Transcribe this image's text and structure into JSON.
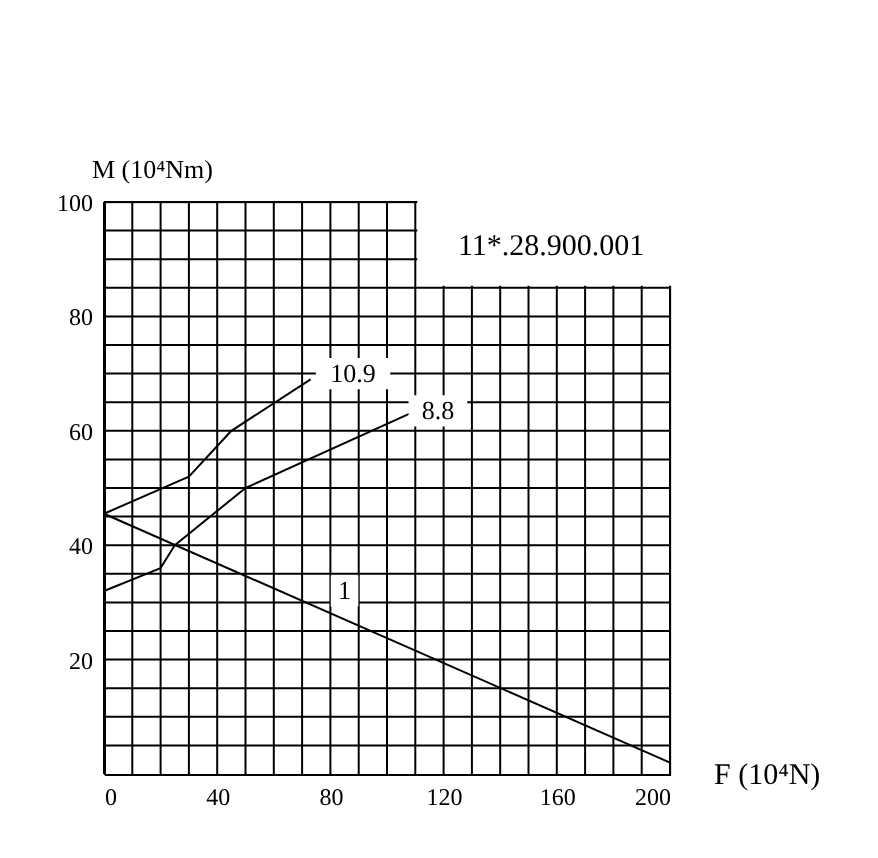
{
  "chart_data": {
    "type": "line",
    "xlabel": "F (10⁴N)",
    "ylabel": "M (10⁴Nm)",
    "xlim": [
      0,
      200
    ],
    "ylim": [
      0,
      100
    ],
    "xticks": [
      0,
      {
        "value": 10,
        "label": null
      },
      {
        "value": 20,
        "label": null
      },
      {
        "value": 30,
        "label": null
      },
      40,
      {
        "value": 50,
        "label": null
      },
      {
        "value": 60,
        "label": null
      },
      {
        "value": 70,
        "label": null
      },
      80,
      {
        "value": 90,
        "label": null
      },
      {
        "value": 100,
        "label": null
      },
      {
        "value": 110,
        "label": null
      },
      120,
      {
        "value": 130,
        "label": null
      },
      {
        "value": 140,
        "label": null
      },
      {
        "value": 150,
        "label": null
      },
      160,
      {
        "value": 170,
        "label": null
      },
      {
        "value": 180,
        "label": null
      },
      {
        "value": 190,
        "label": null
      },
      200
    ],
    "yticks": [
      {
        "value": 5,
        "label": null
      },
      {
        "value": 10,
        "label": null
      },
      {
        "value": 15,
        "label": null
      },
      20,
      {
        "value": 25,
        "label": null
      },
      {
        "value": 30,
        "label": null
      },
      {
        "value": 35,
        "label": null
      },
      40,
      {
        "value": 45,
        "label": null
      },
      {
        "value": 50,
        "label": null
      },
      {
        "value": 55,
        "label": null
      },
      60,
      {
        "value": 65,
        "label": null
      },
      {
        "value": 70,
        "label": null
      },
      {
        "value": 75,
        "label": null
      },
      80,
      {
        "value": 85,
        "label": null
      },
      {
        "value": 90,
        "label": null
      },
      {
        "value": 95,
        "label": null
      },
      100
    ],
    "grid": true,
    "marker": "none",
    "line_style": "solid",
    "series": [
      {
        "color": "#000000",
        "x": [
          0,
          30,
          45,
          73
        ],
        "values": [
          45.5,
          52,
          60,
          69
        ]
      },
      {
        "color": "#000000",
        "x": [
          0,
          20,
          25,
          50,
          108
        ],
        "values": [
          32,
          36,
          40,
          50,
          63
        ]
      },
      {
        "color": "#000000",
        "x": [
          0,
          200
        ],
        "values": [
          45.5,
          2
        ]
      }
    ],
    "annotations": [
      "10.9",
      "8.8",
      "1",
      "11*.28.900.001"
    ]
  }
}
